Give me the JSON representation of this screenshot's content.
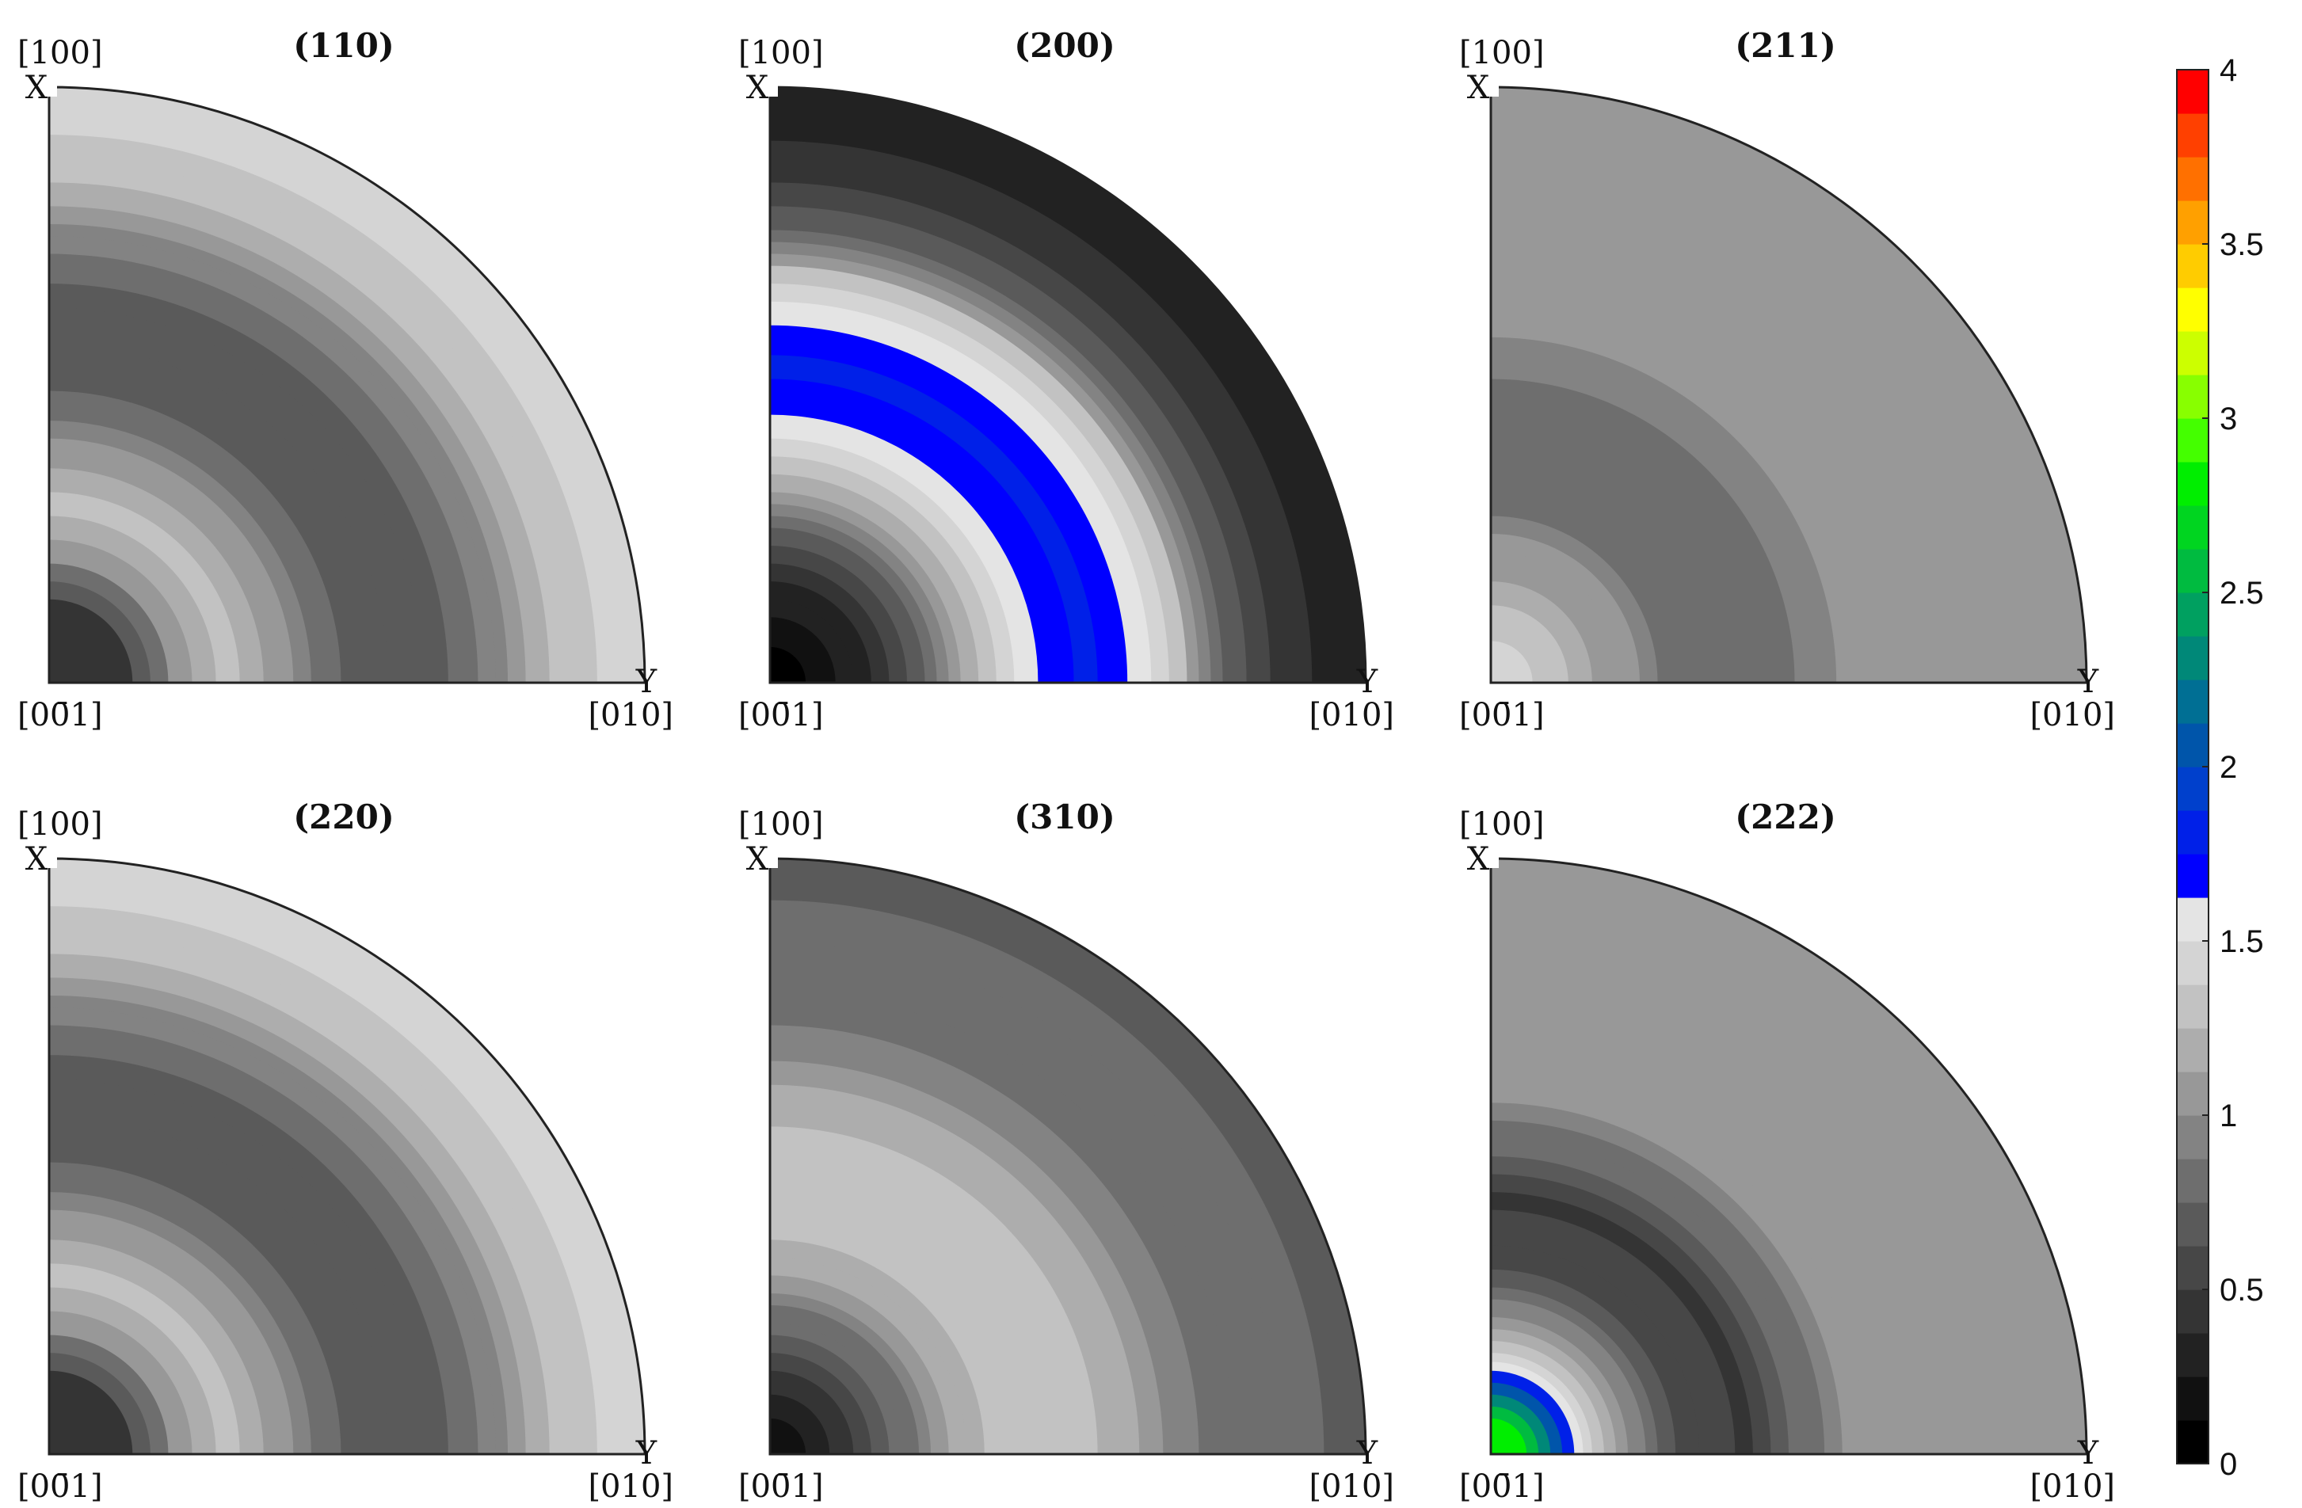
{
  "chart_data": {
    "type": "heatmap",
    "kind": "pole-figure-contour",
    "colorbar": {
      "min": 0,
      "max": 4,
      "ticks": [
        "0",
        "0.5",
        "1",
        "1.5",
        "2",
        "2.5",
        "3",
        "3.5",
        "4"
      ],
      "tick_values": [
        0,
        0.5,
        1,
        1.5,
        2,
        2.5,
        3,
        3.5,
        4
      ],
      "levels": 32,
      "colors": [
        "#000000",
        "#111111",
        "#222222",
        "#343434",
        "#474747",
        "#5a5a5a",
        "#6e6e6e",
        "#838383",
        "#989898",
        "#adadad",
        "#c2c2c2",
        "#d4d4d4",
        "#e4e4e4",
        "#0000ff",
        "#0020e8",
        "#0040cc",
        "#0055aa",
        "#006f94",
        "#008878",
        "#00a060",
        "#00bb40",
        "#00d520",
        "#00ee00",
        "#44ff00",
        "#88ff00",
        "#ccff00",
        "#ffff00",
        "#ffcc00",
        "#ffa000",
        "#ff7000",
        "#ff4000",
        "#ff0000"
      ]
    },
    "panels": [
      {
        "title": "(110)",
        "x_label": "X",
        "y_label": "Y",
        "corner_top": "[100]",
        "corner_bottom_left": "[00̄1]",
        "corner_bottom_right": "[010]",
        "bands": [
          {
            "r": 0.14,
            "v": 0.4
          },
          {
            "r": 0.17,
            "v": 0.65
          },
          {
            "r": 0.2,
            "v": 0.85
          },
          {
            "r": 0.24,
            "v": 1.05
          },
          {
            "r": 0.28,
            "v": 1.2
          },
          {
            "r": 0.32,
            "v": 1.25
          },
          {
            "r": 0.36,
            "v": 1.15
          },
          {
            "r": 0.41,
            "v": 1.05
          },
          {
            "r": 0.44,
            "v": 0.9
          },
          {
            "r": 0.49,
            "v": 0.8
          },
          {
            "r": 0.57,
            "v": 0.7
          },
          {
            "r": 0.63,
            "v": 0.65
          },
          {
            "r": 0.67,
            "v": 0.72
          },
          {
            "r": 0.72,
            "v": 0.8
          },
          {
            "r": 0.75,
            "v": 0.9
          },
          {
            "r": 0.77,
            "v": 0.95
          },
          {
            "r": 0.8,
            "v": 1.05
          },
          {
            "r": 0.84,
            "v": 1.15
          },
          {
            "r": 0.88,
            "v": 1.25
          },
          {
            "r": 0.92,
            "v": 1.35
          },
          {
            "r": 1.0,
            "v": 1.45
          }
        ]
      },
      {
        "title": "(200)",
        "x_label": "X",
        "y_label": "Y",
        "corner_top": "[100]",
        "corner_bottom_left": "[00̄1]",
        "corner_bottom_right": "[010]",
        "bands": [
          {
            "r": 0.06,
            "v": 0.05
          },
          {
            "r": 0.11,
            "v": 0.15
          },
          {
            "r": 0.14,
            "v": 0.25
          },
          {
            "r": 0.17,
            "v": 0.35
          },
          {
            "r": 0.2,
            "v": 0.45
          },
          {
            "r": 0.23,
            "v": 0.6
          },
          {
            "r": 0.26,
            "v": 0.7
          },
          {
            "r": 0.28,
            "v": 0.8
          },
          {
            "r": 0.3,
            "v": 0.9
          },
          {
            "r": 0.32,
            "v": 1.05
          },
          {
            "r": 0.35,
            "v": 1.15
          },
          {
            "r": 0.38,
            "v": 1.3
          },
          {
            "r": 0.41,
            "v": 1.4
          },
          {
            "r": 0.45,
            "v": 1.55
          },
          {
            "r": 0.51,
            "v": 1.65
          },
          {
            "r": 0.55,
            "v": 1.75
          },
          {
            "r": 0.6,
            "v": 1.65
          },
          {
            "r": 0.64,
            "v": 1.55
          },
          {
            "r": 0.67,
            "v": 1.4
          },
          {
            "r": 0.7,
            "v": 1.25
          },
          {
            "r": 0.72,
            "v": 1.05
          },
          {
            "r": 0.74,
            "v": 0.9
          },
          {
            "r": 0.76,
            "v": 0.8
          },
          {
            "r": 0.8,
            "v": 0.7
          },
          {
            "r": 0.84,
            "v": 0.6
          },
          {
            "r": 0.91,
            "v": 0.45
          },
          {
            "r": 1.0,
            "v": 0.35
          }
        ]
      },
      {
        "title": "(211)",
        "x_label": "X",
        "y_label": "Y",
        "corner_top": "[100]",
        "corner_bottom_left": "[00̄1]",
        "corner_bottom_right": "[010]",
        "bands": [
          {
            "r": 0.07,
            "v": 1.45
          },
          {
            "r": 0.1,
            "v": 1.35
          },
          {
            "r": 0.13,
            "v": 1.25
          },
          {
            "r": 0.17,
            "v": 1.2
          },
          {
            "r": 0.22,
            "v": 1.1
          },
          {
            "r": 0.25,
            "v": 1.05
          },
          {
            "r": 0.28,
            "v": 0.95
          },
          {
            "r": 0.51,
            "v": 0.85
          },
          {
            "r": 0.58,
            "v": 0.95
          },
          {
            "r": 1.0,
            "v": 1.05
          }
        ]
      },
      {
        "title": "(220)",
        "x_label": "X",
        "y_label": "Y",
        "corner_top": "[100]",
        "corner_bottom_left": "[00̄1]",
        "corner_bottom_right": "[010]",
        "bands": [
          {
            "r": 0.14,
            "v": 0.4
          },
          {
            "r": 0.17,
            "v": 0.65
          },
          {
            "r": 0.2,
            "v": 0.85
          },
          {
            "r": 0.24,
            "v": 1.05
          },
          {
            "r": 0.28,
            "v": 1.2
          },
          {
            "r": 0.32,
            "v": 1.25
          },
          {
            "r": 0.36,
            "v": 1.15
          },
          {
            "r": 0.41,
            "v": 1.05
          },
          {
            "r": 0.44,
            "v": 0.9
          },
          {
            "r": 0.49,
            "v": 0.8
          },
          {
            "r": 0.57,
            "v": 0.7
          },
          {
            "r": 0.63,
            "v": 0.65
          },
          {
            "r": 0.67,
            "v": 0.72
          },
          {
            "r": 0.72,
            "v": 0.8
          },
          {
            "r": 0.75,
            "v": 0.9
          },
          {
            "r": 0.77,
            "v": 0.95
          },
          {
            "r": 0.8,
            "v": 1.05
          },
          {
            "r": 0.84,
            "v": 1.15
          },
          {
            "r": 0.88,
            "v": 1.25
          },
          {
            "r": 0.92,
            "v": 1.35
          },
          {
            "r": 1.0,
            "v": 1.45
          }
        ]
      },
      {
        "title": "(310)",
        "x_label": "X",
        "y_label": "Y",
        "corner_top": "[100]",
        "corner_bottom_left": "[00̄1]",
        "corner_bottom_right": "[010]",
        "bands": [
          {
            "r": 0.06,
            "v": 0.2
          },
          {
            "r": 0.1,
            "v": 0.3
          },
          {
            "r": 0.14,
            "v": 0.4
          },
          {
            "r": 0.17,
            "v": 0.55
          },
          {
            "r": 0.2,
            "v": 0.65
          },
          {
            "r": 0.22,
            "v": 0.75
          },
          {
            "r": 0.25,
            "v": 0.85
          },
          {
            "r": 0.27,
            "v": 0.95
          },
          {
            "r": 0.3,
            "v": 1.05
          },
          {
            "r": 0.33,
            "v": 1.15
          },
          {
            "r": 0.36,
            "v": 1.2
          },
          {
            "r": 0.55,
            "v": 1.3
          },
          {
            "r": 0.62,
            "v": 1.15
          },
          {
            "r": 0.66,
            "v": 1.05
          },
          {
            "r": 0.72,
            "v": 0.95
          },
          {
            "r": 0.78,
            "v": 0.85
          },
          {
            "r": 0.86,
            "v": 0.8
          },
          {
            "r": 0.93,
            "v": 0.75
          },
          {
            "r": 1.0,
            "v": 0.7
          }
        ]
      },
      {
        "title": "(222)",
        "x_label": "X",
        "y_label": "Y",
        "corner_top": "[100]",
        "corner_bottom_left": "[00̄1]",
        "corner_bottom_right": "[010]",
        "bands": [
          {
            "r": 0.06,
            "v": 2.85
          },
          {
            "r": 0.08,
            "v": 2.6
          },
          {
            "r": 0.1,
            "v": 2.35
          },
          {
            "r": 0.12,
            "v": 2.1
          },
          {
            "r": 0.14,
            "v": 1.85
          },
          {
            "r": 0.155,
            "v": 1.6
          },
          {
            "r": 0.17,
            "v": 1.45
          },
          {
            "r": 0.19,
            "v": 1.3
          },
          {
            "r": 0.21,
            "v": 1.15
          },
          {
            "r": 0.23,
            "v": 1.05
          },
          {
            "r": 0.26,
            "v": 0.9
          },
          {
            "r": 0.28,
            "v": 0.8
          },
          {
            "r": 0.31,
            "v": 0.7
          },
          {
            "r": 0.35,
            "v": 0.6
          },
          {
            "r": 0.41,
            "v": 0.5
          },
          {
            "r": 0.44,
            "v": 0.45
          },
          {
            "r": 0.47,
            "v": 0.55
          },
          {
            "r": 0.5,
            "v": 0.65
          },
          {
            "r": 0.53,
            "v": 0.75
          },
          {
            "r": 0.56,
            "v": 0.85
          },
          {
            "r": 0.59,
            "v": 0.95
          },
          {
            "r": 0.63,
            "v": 1.05
          },
          {
            "r": 1.0,
            "v": 1.1
          }
        ]
      }
    ]
  }
}
